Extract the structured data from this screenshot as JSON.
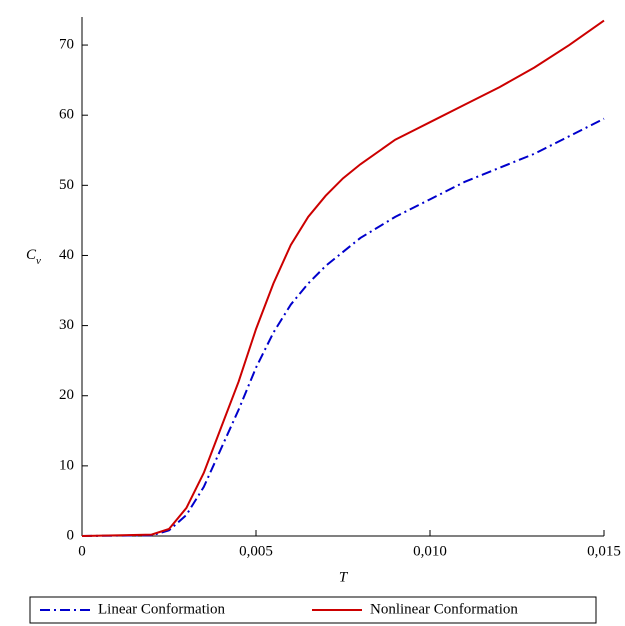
{
  "chart_data": {
    "type": "line",
    "x_label": "T",
    "y_label": "C",
    "y_label_subscript": "v",
    "x": [
      0,
      0.002,
      0.0025,
      0.003,
      0.0035,
      0.004,
      0.0045,
      0.005,
      0.0055,
      0.006,
      0.0065,
      0.007,
      0.0075,
      0.008,
      0.009,
      0.01,
      0.011,
      0.012,
      0.013,
      0.014,
      0.015
    ],
    "series": [
      {
        "name": "Linear Conformation",
        "color": "#0000cc",
        "dash": "dashdot",
        "values": [
          0,
          0.1,
          0.8,
          3,
          7,
          12.5,
          18,
          24,
          29,
          33,
          36,
          38.5,
          40.5,
          42.5,
          45.5,
          48,
          50.5,
          52.5,
          54.5,
          57,
          59.5
        ]
      },
      {
        "name": "Nonlinear Conformation",
        "color": "#cc0000",
        "dash": "solid",
        "values": [
          0,
          0.2,
          1,
          4,
          9,
          15.5,
          22,
          29.5,
          36,
          41.5,
          45.5,
          48.5,
          51,
          53,
          56.5,
          59,
          61.5,
          64,
          66.8,
          70,
          73.5
        ]
      }
    ],
    "xlim": [
      0,
      0.015
    ],
    "xticks": [
      0,
      {
        "value": 0.005,
        "label": "0,005"
      },
      {
        "value": 0.01,
        "label": "0,010"
      },
      {
        "value": 0.015,
        "label": "0,015"
      }
    ],
    "ylim": [
      0,
      74
    ],
    "yticks": [
      0,
      10,
      20,
      30,
      40,
      50,
      60,
      70
    ],
    "grid": false,
    "legend": "bottom"
  }
}
